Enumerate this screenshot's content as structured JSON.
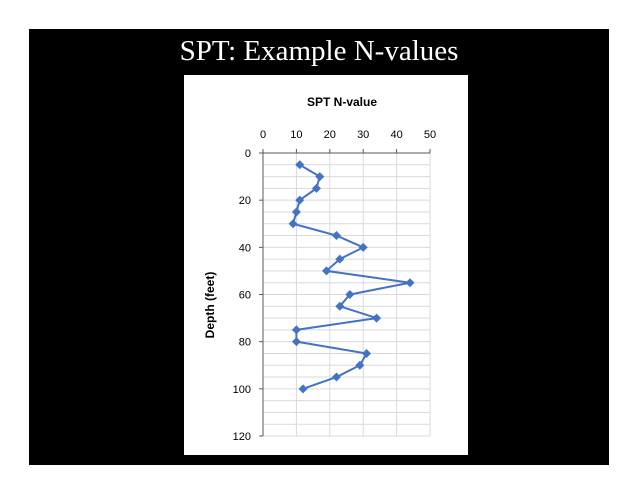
{
  "slide": {
    "title": "SPT: Example N-values"
  },
  "colors": {
    "background": "#000000",
    "series": "#4472c4",
    "grid": "#d9d9d9",
    "axis": "#595959"
  },
  "chart_data": {
    "type": "scatter",
    "title": "SPT N-value",
    "xlabel": "",
    "ylabel": "Depth (feet)",
    "xlim": [
      0,
      50
    ],
    "ylim": [
      0,
      120
    ],
    "x_axis_position": "top",
    "y_axis_reversed": true,
    "x_ticks": [
      "0",
      "10",
      "20",
      "30",
      "40",
      "50"
    ],
    "y_ticks": [
      "0",
      "20",
      "40",
      "60",
      "80",
      "100",
      "120"
    ],
    "grid": true,
    "legend": "none",
    "series": [
      {
        "marker": "diamond",
        "line": true,
        "points": [
          {
            "x": 11,
            "y": 5
          },
          {
            "x": 17,
            "y": 10
          },
          {
            "x": 16,
            "y": 15
          },
          {
            "x": 11,
            "y": 20
          },
          {
            "x": 10,
            "y": 25
          },
          {
            "x": 9,
            "y": 30
          },
          {
            "x": 22,
            "y": 35
          },
          {
            "x": 30,
            "y": 40
          },
          {
            "x": 23,
            "y": 45
          },
          {
            "x": 19,
            "y": 50
          },
          {
            "x": 44,
            "y": 55
          },
          {
            "x": 26,
            "y": 60
          },
          {
            "x": 23,
            "y": 65
          },
          {
            "x": 34,
            "y": 70
          },
          {
            "x": 10,
            "y": 75
          },
          {
            "x": 10,
            "y": 80
          },
          {
            "x": 31,
            "y": 85
          },
          {
            "x": 29,
            "y": 90
          },
          {
            "x": 22,
            "y": 95
          },
          {
            "x": 12,
            "y": 100
          }
        ]
      }
    ]
  }
}
